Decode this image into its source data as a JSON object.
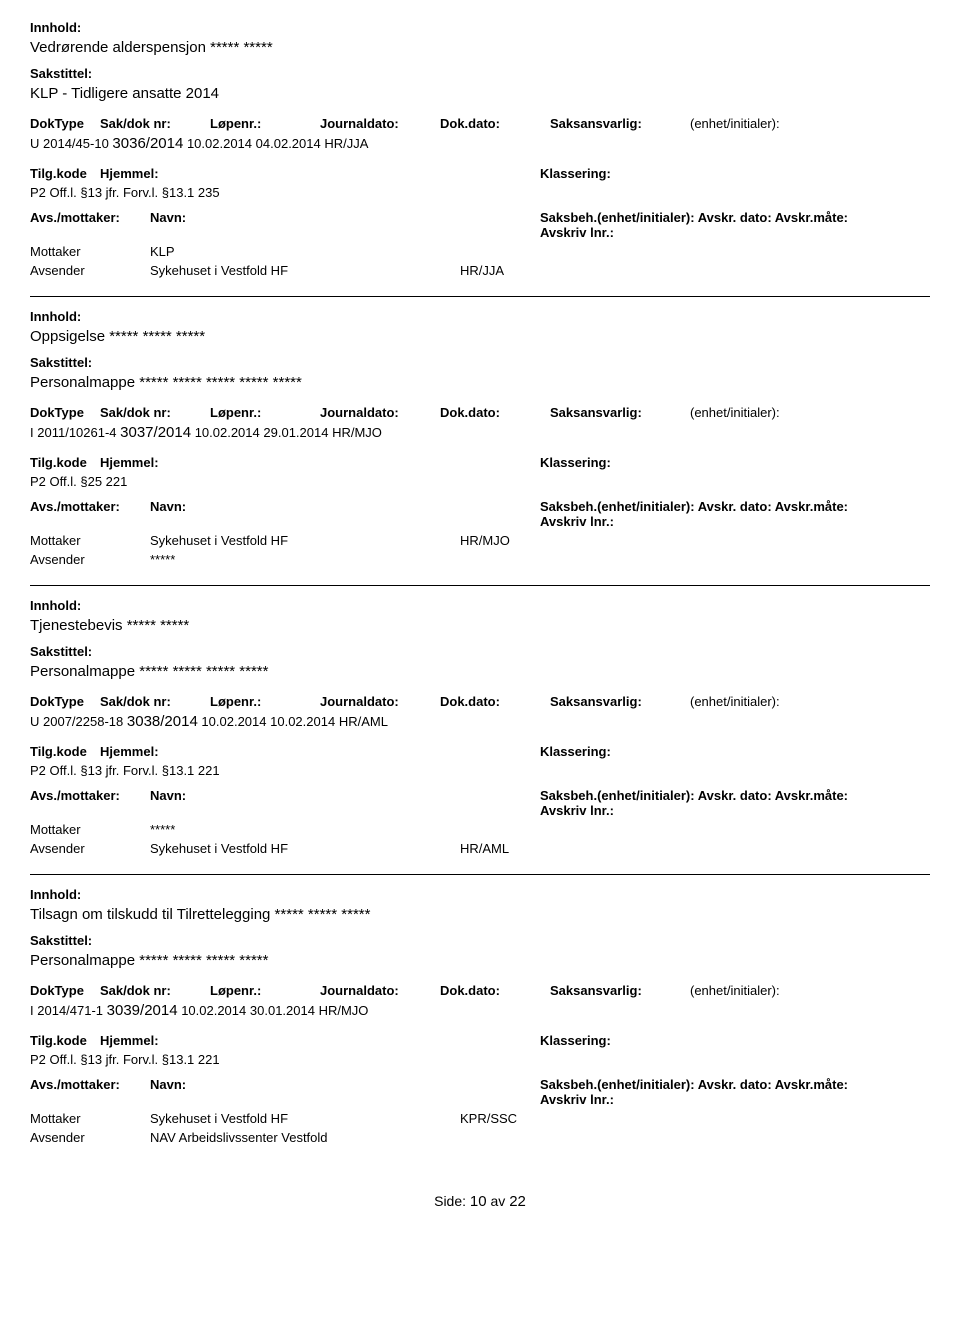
{
  "labels": {
    "innhold": "Innhold:",
    "sakstittel": "Sakstittel:",
    "doktype": "DokType",
    "sakdok": "Sak/dok nr:",
    "lopnr": "Løpenr.:",
    "journaldato": "Journaldato:",
    "dokdato": "Dok.dato:",
    "saksansvarlig": "Saksansvarlig:",
    "enhet": "(enhet/initialer):",
    "tilgkode": "Tilg.kode",
    "hjemmel": "Hjemmel:",
    "klassering": "Klassering:",
    "avsmottaker": "Avs./mottaker:",
    "navn": "Navn:",
    "saksbeh": "Saksbeh.(enhet/initialer): Avskr. dato: Avskr.måte: Avskriv lnr.:",
    "mottaker": "Mottaker",
    "avsender": "Avsender",
    "side": "Side:",
    "av": "av"
  },
  "records": [
    {
      "innhold": "Vedrørende alderspensjon ***** *****",
      "sakstittel": "KLP - Tidligere ansatte 2014",
      "doktype": "U",
      "sakdok": "2014/45-10",
      "lopnr": "3036/2014",
      "journaldato": "10.02.2014",
      "dokdato": "04.02.2014",
      "saksansvarlig": "HR/JJA",
      "tilgkode": "P2",
      "hjemmel": "Off.l. §13  jfr.  Forv.l. §13.1",
      "klassering": "235",
      "mottaker_navn": "KLP",
      "mottaker_saksbeh": "",
      "avsender_navn": "Sykehuset i Vestfold HF",
      "avsender_saksbeh": "HR/JJA"
    },
    {
      "innhold": "Oppsigelse ***** ***** *****",
      "sakstittel": "Personalmappe ***** ***** ***** ***** *****",
      "doktype": "I",
      "sakdok": "2011/10261-4",
      "lopnr": "3037/2014",
      "journaldato": "10.02.2014",
      "dokdato": "29.01.2014",
      "saksansvarlig": "HR/MJO",
      "tilgkode": "P2",
      "hjemmel": "Off.l. §25",
      "klassering": "221",
      "mottaker_navn": "Sykehuset i Vestfold HF",
      "mottaker_saksbeh": "HR/MJO",
      "avsender_navn": "*****",
      "avsender_saksbeh": ""
    },
    {
      "innhold": "Tjenestebevis ***** *****",
      "sakstittel": "Personalmappe ***** ***** ***** *****",
      "doktype": "U",
      "sakdok": "2007/2258-18",
      "lopnr": "3038/2014",
      "journaldato": "10.02.2014",
      "dokdato": "10.02.2014",
      "saksansvarlig": "HR/AML",
      "tilgkode": "P2",
      "hjemmel": "Off.l. §13  jfr.  Forv.l. §13.1",
      "klassering": "221",
      "mottaker_navn": "*****",
      "mottaker_saksbeh": "",
      "avsender_navn": "Sykehuset i Vestfold HF",
      "avsender_saksbeh": "HR/AML"
    },
    {
      "innhold": "Tilsagn om tilskudd til Tilrettelegging ***** ***** *****",
      "sakstittel": "Personalmappe ***** ***** ***** *****",
      "doktype": "I",
      "sakdok": "2014/471-1",
      "lopnr": "3039/2014",
      "journaldato": "10.02.2014",
      "dokdato": "30.01.2014",
      "saksansvarlig": "HR/MJO",
      "tilgkode": "P2",
      "hjemmel": "Off.l. §13  jfr.  Forv.l. §13.1",
      "klassering": "221",
      "mottaker_navn": "Sykehuset i Vestfold HF",
      "mottaker_saksbeh": "KPR/SSC",
      "avsender_navn": "NAV Arbeidslivssenter Vestfold",
      "avsender_saksbeh": ""
    }
  ],
  "page": {
    "current": "10",
    "total": "22"
  }
}
